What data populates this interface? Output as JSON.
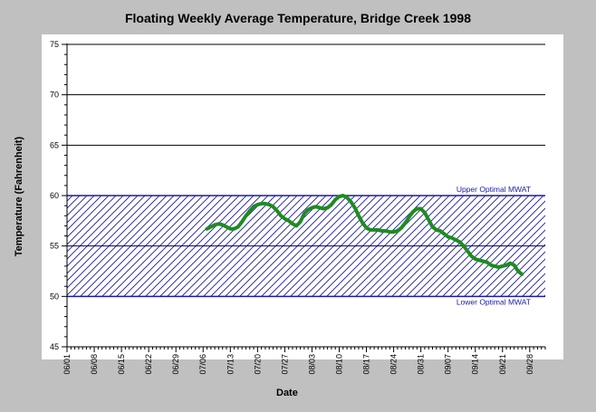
{
  "chart_data": {
    "type": "line",
    "title": "Floating Weekly Average Temperature, Bridge Creek 1998",
    "xlabel": "Date",
    "ylabel": "Temperature (Fahrenheit)",
    "ylim": [
      45,
      75
    ],
    "yticks": [
      "45",
      "50",
      "55",
      "60",
      "65",
      "70",
      "75"
    ],
    "xticks": [
      "06/01",
      "06/08",
      "06/15",
      "06/22",
      "06/29",
      "07/06",
      "07/13",
      "07/20",
      "07/27",
      "08/03",
      "08/10",
      "08/17",
      "08/24",
      "08/31",
      "09/07",
      "09/14",
      "09/21",
      "09/28"
    ],
    "grid": "horizontal",
    "band": {
      "upper": 60,
      "lower": 50,
      "midline": 55,
      "upper_label": "Upper Optimal MWAT",
      "lower_label": "Lower Optimal MWAT"
    },
    "series": [
      {
        "color": "#1e8c1e",
        "x": [
          36,
          37,
          38,
          39,
          40,
          41,
          42,
          43,
          44,
          45,
          46,
          47,
          48,
          49,
          50,
          51,
          52,
          53,
          54,
          55,
          56,
          57,
          58,
          59,
          60,
          61,
          62,
          63,
          64,
          65,
          66,
          67,
          68,
          69,
          70,
          71,
          72,
          73,
          74,
          75,
          76,
          77,
          78,
          79,
          80,
          81,
          82,
          83,
          84,
          85,
          86,
          87,
          88,
          89,
          90,
          91,
          92,
          93,
          94,
          95,
          96,
          97,
          98,
          99,
          100,
          101,
          102,
          103,
          104,
          105,
          106,
          107,
          108,
          109,
          110,
          111,
          112,
          113,
          114,
          115,
          116,
          117,
          118,
          119,
          120,
          121,
          122
        ],
        "y": [
          56.7,
          56.9,
          57.1,
          57.2,
          57.1,
          56.9,
          56.7,
          56.7,
          56.9,
          57.4,
          58.0,
          58.5,
          58.9,
          59.1,
          59.2,
          59.2,
          59.1,
          58.9,
          58.5,
          58.0,
          57.7,
          57.5,
          57.2,
          57.0,
          57.4,
          58.2,
          58.6,
          58.8,
          58.9,
          58.8,
          58.7,
          58.8,
          59.1,
          59.6,
          59.9,
          60.0,
          59.8,
          59.4,
          58.8,
          58.0,
          57.3,
          56.8,
          56.6,
          56.6,
          56.6,
          56.5,
          56.5,
          56.4,
          56.4,
          56.5,
          56.8,
          57.3,
          57.9,
          58.4,
          58.7,
          58.7,
          58.3,
          57.6,
          56.9,
          56.6,
          56.5,
          56.2,
          55.9,
          55.8,
          55.6,
          55.4,
          55.0,
          54.5,
          54.0,
          53.7,
          53.6,
          53.5,
          53.4,
          53.1,
          53.0,
          52.9,
          53.0,
          53.1,
          53.3,
          53.1,
          52.5,
          52.2,
          null,
          null,
          null,
          null,
          null
        ]
      }
    ]
  }
}
